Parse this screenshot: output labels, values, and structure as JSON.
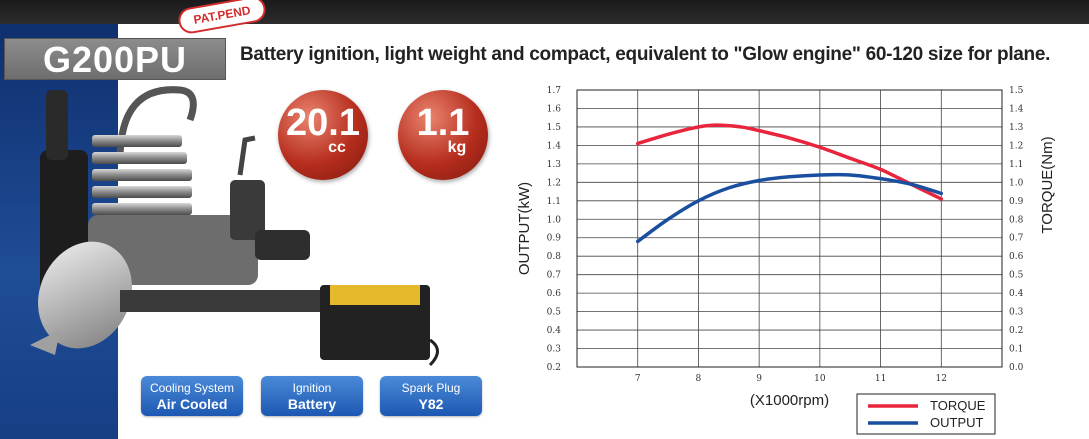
{
  "pat_pend": "PAT.PEND",
  "model": "G200PU",
  "headline": "Battery ignition, light weight and compact, equivalent to \"Glow engine\" 60-120 size for plane.",
  "badges": {
    "displacement_value": "20.1",
    "displacement_unit": "cc",
    "weight_value": "1.1",
    "weight_unit": "kg"
  },
  "specs": [
    {
      "label": "Cooling System",
      "value": "Air Cooled"
    },
    {
      "label": "Ignition",
      "value": "Battery"
    },
    {
      "label": "Spark Plug",
      "value": "Y82"
    }
  ],
  "colors": {
    "torque": "#e8253c",
    "output": "#1a4fa0"
  },
  "chart_data": {
    "type": "line",
    "title": "",
    "xlabel": "(X1000rpm)",
    "ylabel": "OUTPUT(kW)",
    "y2label": "TORQUE(Nm)",
    "xlim": [
      6,
      13
    ],
    "ylim": [
      0.2,
      1.7
    ],
    "y2lim": [
      0.0,
      1.5
    ],
    "xticks": [
      7,
      8,
      9,
      10,
      11,
      12
    ],
    "yticks": [
      0.2,
      0.3,
      0.4,
      0.5,
      0.6,
      0.7,
      0.8,
      0.9,
      1.0,
      1.1,
      1.2,
      1.3,
      1.4,
      1.5,
      1.6,
      1.7
    ],
    "y2ticks": [
      0.0,
      0.1,
      0.2,
      0.3,
      0.4,
      0.5,
      0.6,
      0.7,
      0.8,
      0.9,
      1.0,
      1.1,
      1.2,
      1.3,
      1.4,
      1.5
    ],
    "grid": true,
    "legend_position": "bottom-right",
    "series": [
      {
        "name": "TORQUE",
        "axis": "right",
        "x": [
          7,
          7.5,
          8,
          8.3,
          8.7,
          9,
          9.5,
          10,
          10.5,
          11,
          11.5,
          12
        ],
        "values": [
          1.21,
          1.26,
          1.3,
          1.31,
          1.3,
          1.28,
          1.24,
          1.19,
          1.13,
          1.07,
          0.99,
          0.91
        ]
      },
      {
        "name": "OUTPUT",
        "axis": "left",
        "x": [
          7,
          7.5,
          8,
          8.5,
          9,
          9.5,
          10,
          10.5,
          11,
          11.5,
          12
        ],
        "values": [
          0.88,
          1.0,
          1.1,
          1.17,
          1.21,
          1.23,
          1.24,
          1.24,
          1.22,
          1.19,
          1.14
        ]
      }
    ]
  }
}
